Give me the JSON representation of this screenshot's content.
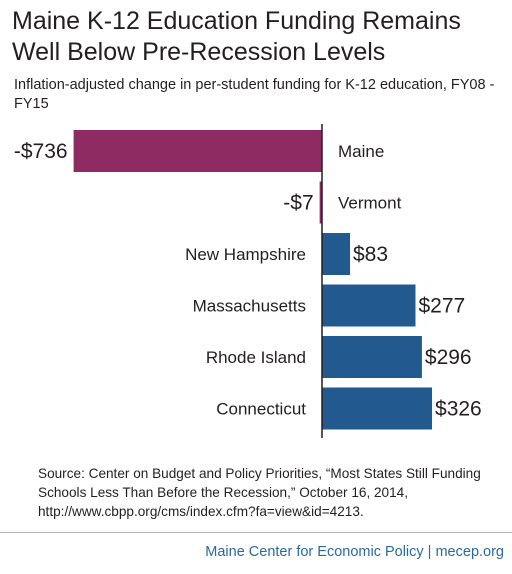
{
  "header": {
    "title": "Maine K-12 Education Funding Remains Well Below Pre-Recession Levels",
    "subtitle": "Inflation-adjusted change in per-student funding for K-12 education, FY08 - FY15"
  },
  "chart_data": {
    "type": "bar",
    "orientation": "horizontal",
    "title": "Maine K-12 Education Funding Remains Well Below Pre-Recession Levels",
    "subtitle": "Inflation-adjusted change in per-student funding for K-12 education, FY08 - FY15",
    "categories": [
      "Maine",
      "Vermont",
      "New Hampshire",
      "Massachusetts",
      "Rhode Island",
      "Connecticut"
    ],
    "values": [
      -736,
      -7,
      83,
      277,
      296,
      326
    ],
    "value_labels": [
      "-$736",
      "-$7",
      "$83",
      "$277",
      "$296",
      "$326"
    ],
    "xlim": [
      -736,
      326
    ],
    "grid": false,
    "legend": "none",
    "colors": {
      "negative": "#8e2b63",
      "positive": "#22598f",
      "axis": "#231f20"
    }
  },
  "source": {
    "text": "Source:  Center on Budget and Policy Priorities, “Most States Still Funding Schools Less Than Before the Recession,” October 16, 2014, http://www.cbpp.org/cms/index.cfm?fa=view&id=4213."
  },
  "footer": {
    "text": "Maine Center for Economic Policy | mecep.org"
  }
}
